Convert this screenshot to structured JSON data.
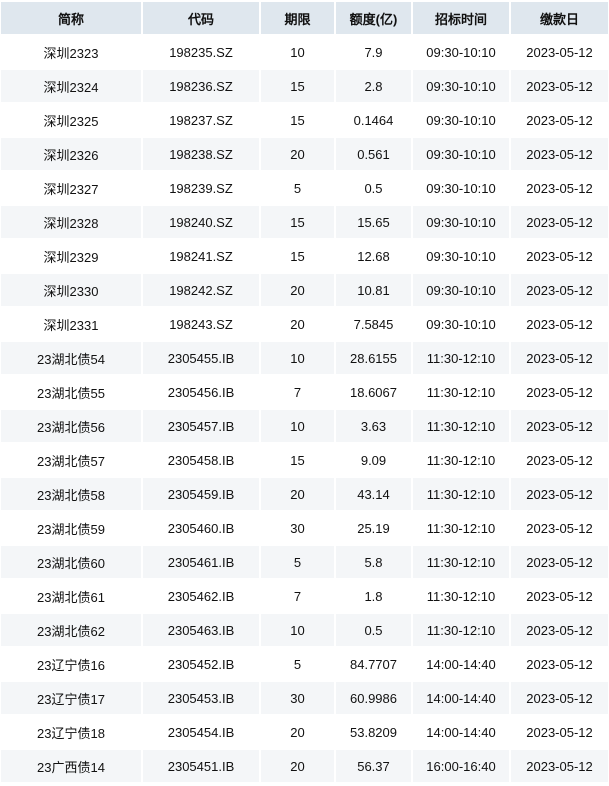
{
  "table": {
    "headers": [
      "简称",
      "代码",
      "期限",
      "额度(亿)",
      "招标时间",
      "缴款日"
    ],
    "rows": [
      [
        "深圳2323",
        "198235.SZ",
        "10",
        "7.9",
        "09:30-10:10",
        "2023-05-12"
      ],
      [
        "深圳2324",
        "198236.SZ",
        "15",
        "2.8",
        "09:30-10:10",
        "2023-05-12"
      ],
      [
        "深圳2325",
        "198237.SZ",
        "15",
        "0.1464",
        "09:30-10:10",
        "2023-05-12"
      ],
      [
        "深圳2326",
        "198238.SZ",
        "20",
        "0.561",
        "09:30-10:10",
        "2023-05-12"
      ],
      [
        "深圳2327",
        "198239.SZ",
        "5",
        "0.5",
        "09:30-10:10",
        "2023-05-12"
      ],
      [
        "深圳2328",
        "198240.SZ",
        "15",
        "15.65",
        "09:30-10:10",
        "2023-05-12"
      ],
      [
        "深圳2329",
        "198241.SZ",
        "15",
        "12.68",
        "09:30-10:10",
        "2023-05-12"
      ],
      [
        "深圳2330",
        "198242.SZ",
        "20",
        "10.81",
        "09:30-10:10",
        "2023-05-12"
      ],
      [
        "深圳2331",
        "198243.SZ",
        "20",
        "7.5845",
        "09:30-10:10",
        "2023-05-12"
      ],
      [
        "23湖北债54",
        "2305455.IB",
        "10",
        "28.6155",
        "11:30-12:10",
        "2023-05-12"
      ],
      [
        "23湖北债55",
        "2305456.IB",
        "7",
        "18.6067",
        "11:30-12:10",
        "2023-05-12"
      ],
      [
        "23湖北债56",
        "2305457.IB",
        "10",
        "3.63",
        "11:30-12:10",
        "2023-05-12"
      ],
      [
        "23湖北债57",
        "2305458.IB",
        "15",
        "9.09",
        "11:30-12:10",
        "2023-05-12"
      ],
      [
        "23湖北债58",
        "2305459.IB",
        "20",
        "43.14",
        "11:30-12:10",
        "2023-05-12"
      ],
      [
        "23湖北债59",
        "2305460.IB",
        "30",
        "25.19",
        "11:30-12:10",
        "2023-05-12"
      ],
      [
        "23湖北债60",
        "2305461.IB",
        "5",
        "5.8",
        "11:30-12:10",
        "2023-05-12"
      ],
      [
        "23湖北债61",
        "2305462.IB",
        "7",
        "1.8",
        "11:30-12:10",
        "2023-05-12"
      ],
      [
        "23湖北债62",
        "2305463.IB",
        "10",
        "0.5",
        "11:30-12:10",
        "2023-05-12"
      ],
      [
        "23辽宁债16",
        "2305452.IB",
        "5",
        "84.7707",
        "14:00-14:40",
        "2023-05-12"
      ],
      [
        "23辽宁债17",
        "2305453.IB",
        "30",
        "60.9986",
        "14:00-14:40",
        "2023-05-12"
      ],
      [
        "23辽宁债18",
        "2305454.IB",
        "20",
        "53.8209",
        "14:00-14:40",
        "2023-05-12"
      ],
      [
        "23广西债14",
        "2305451.IB",
        "20",
        "56.37",
        "16:00-16:40",
        "2023-05-12"
      ]
    ]
  }
}
